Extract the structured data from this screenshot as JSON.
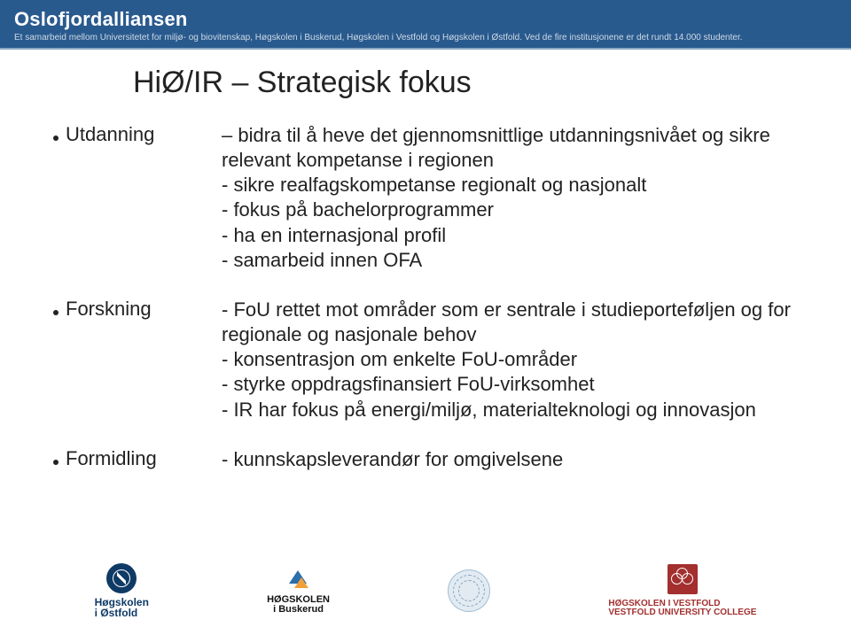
{
  "colors": {
    "header_bg": "#295a8e",
    "header_text": "#ffffff",
    "header_sub": "#cdd9e5",
    "body_text": "#222222",
    "ostfold": "#0f3a66",
    "buskerud_blue": "#2b6fab",
    "buskerud_orange": "#f2a03a",
    "vestfold": "#a32f2f",
    "background": "#ffffff"
  },
  "typography": {
    "header_title_pt": 22,
    "header_sub_pt": 10,
    "slide_title_pt": 34,
    "body_pt": 22,
    "logo_small_pt": 11
  },
  "header": {
    "title": "Oslofjordalliansen",
    "subtitle": "Et samarbeid mellom Universitetet for miljø- og biovitenskap, Høgskolen i Buskerud, Høgskolen i Vestfold og Høgskolen i Østfold. Ved de fire institusjonene er det rundt 14.000 studenter."
  },
  "slide": {
    "title": "HiØ/IR – Strategisk fokus",
    "items": [
      {
        "label": "Utdanning",
        "lines": [
          "– bidra til å heve det gjennomsnittlige utdanningsnivået og sikre relevant kompetanse i regionen",
          "- sikre realfagskompetanse regionalt og nasjonalt",
          "- fokus på bachelorprogrammer",
          "- ha en internasjonal profil",
          "- samarbeid innen OFA"
        ]
      },
      {
        "label": "Forskning",
        "lines": [
          "- FoU rettet mot områder som er sentrale i studieporteføljen og for regionale og nasjonale behov",
          "- konsentrasjon om enkelte FoU-områder",
          "- styrke oppdragsfinansiert FoU-virksomhet",
          "- IR har fokus på energi/miljø, materialteknologi og innovasjon"
        ]
      },
      {
        "label": "Formidling",
        "lines": [
          "- kunnskapsleverandør for omgivelsene"
        ]
      }
    ]
  },
  "footer": {
    "ostfold": {
      "line1": "Høgskolen",
      "line2": "i Østfold"
    },
    "buskerud": {
      "line1": "HØGSKOLEN",
      "line2": "i Buskerud"
    },
    "vestfold": {
      "line1": "HØGSKOLEN I VESTFOLD",
      "line2": "VESTFOLD UNIVERSITY COLLEGE"
    }
  }
}
